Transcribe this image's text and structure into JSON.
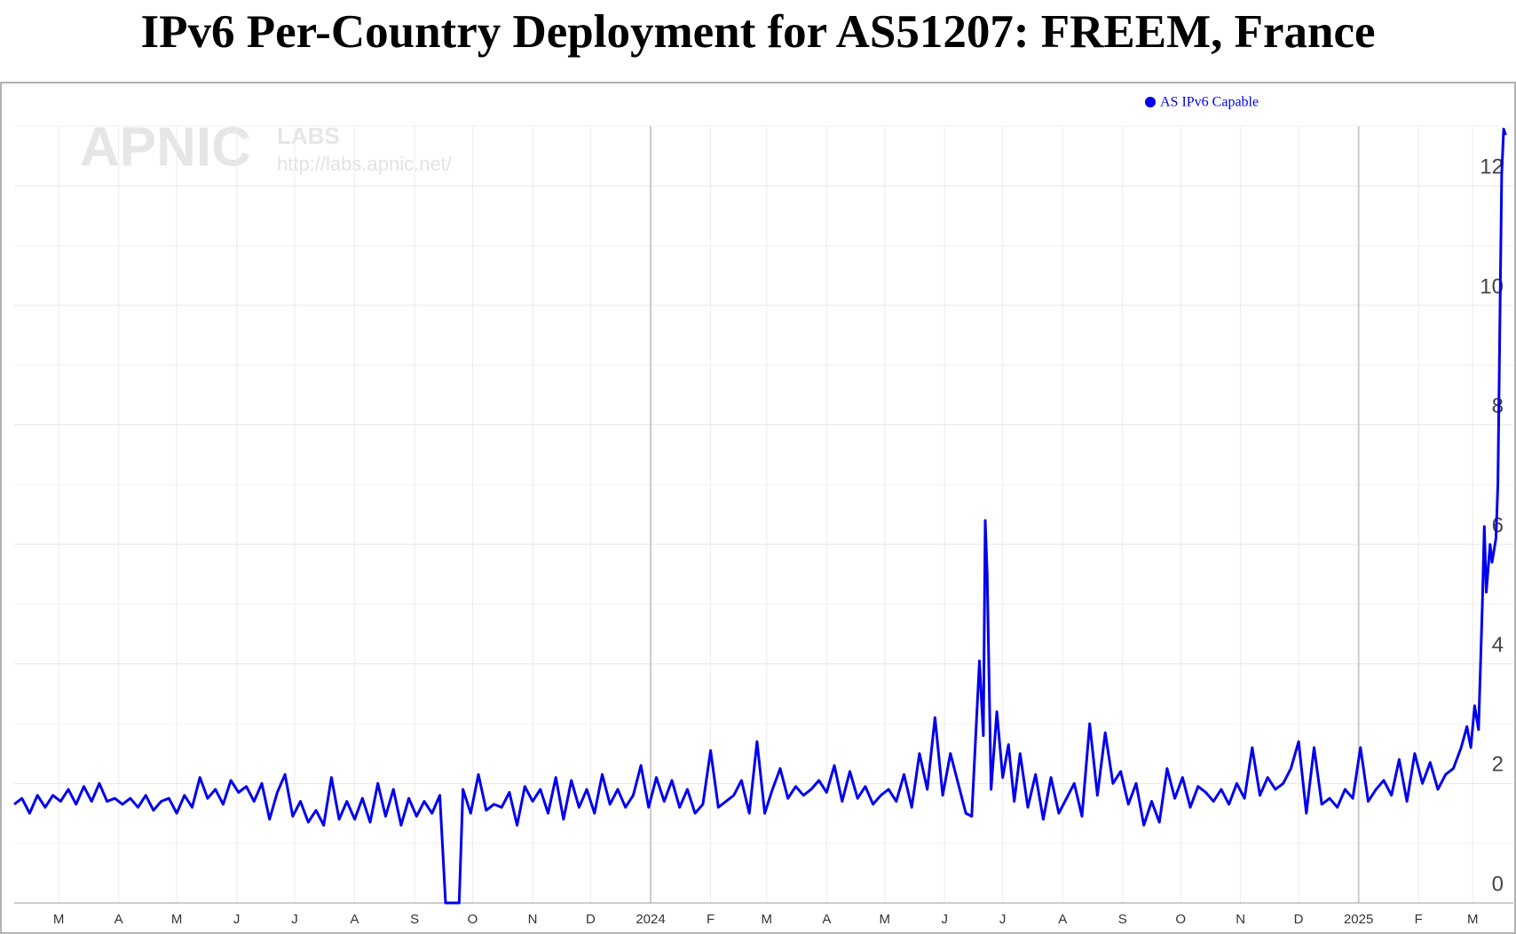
{
  "chart_data": {
    "type": "line",
    "title": "IPv6 Per-Country Deployment for AS51207: FREEM, France",
    "watermark": {
      "logo": "APNIC",
      "sub": "LABS",
      "url": "http://labs.apnic.net/"
    },
    "x": [
      -23,
      -19,
      -15,
      -11,
      -7,
      -3,
      1,
      5,
      9,
      13,
      17,
      21,
      25,
      29,
      33,
      37,
      41,
      45,
      49,
      53,
      57,
      61,
      65,
      69,
      73,
      77,
      81,
      85,
      89,
      93,
      97,
      101,
      105,
      109,
      113,
      117,
      121,
      125,
      129,
      133,
      137,
      141,
      145,
      149,
      153,
      157,
      161,
      165,
      169,
      173,
      177,
      181,
      185,
      189,
      193,
      197,
      200,
      207,
      209,
      213,
      217,
      221,
      225,
      229,
      233,
      237,
      241,
      245,
      249,
      253,
      257,
      261,
      265,
      269,
      273,
      277,
      281,
      285,
      289,
      293,
      297,
      301,
      305,
      309,
      313,
      317,
      321,
      325,
      329,
      333,
      337,
      341,
      345,
      349,
      353,
      357,
      361,
      365,
      369,
      373,
      377,
      381,
      385,
      389,
      393,
      397,
      401,
      405,
      409,
      413,
      417,
      421,
      425,
      429,
      433,
      437,
      441,
      445,
      449,
      453,
      457,
      461,
      465,
      469,
      472,
      476,
      478,
      479,
      480,
      482,
      485,
      488,
      491,
      494,
      497,
      501,
      505,
      509,
      513,
      517,
      521,
      525,
      529,
      533,
      537,
      541,
      545,
      549,
      553,
      557,
      561,
      565,
      569,
      573,
      577,
      581,
      585,
      589,
      593,
      597,
      601,
      605,
      609,
      613,
      617,
      621,
      625,
      629,
      633,
      637,
      641,
      645,
      649,
      653,
      657,
      661,
      665,
      669,
      673,
      677,
      681,
      685,
      689,
      693,
      697,
      701,
      705,
      709,
      713,
      717,
      721,
      725,
      728,
      730,
      732,
      734,
      736,
      737,
      738,
      740,
      741,
      743,
      744,
      746,
      747,
      748
    ],
    "series": [
      {
        "name": "AS IPv6 Capable",
        "color": "#0000ee",
        "values": [
          1.65,
          1.75,
          1.5,
          1.8,
          1.6,
          1.8,
          1.7,
          1.9,
          1.65,
          1.95,
          1.7,
          2.0,
          1.7,
          1.75,
          1.65,
          1.75,
          1.6,
          1.8,
          1.55,
          1.7,
          1.75,
          1.5,
          1.8,
          1.6,
          2.1,
          1.75,
          1.9,
          1.65,
          2.05,
          1.85,
          1.95,
          1.7,
          2.0,
          1.4,
          1.85,
          2.15,
          1.45,
          1.7,
          1.35,
          1.55,
          1.3,
          2.1,
          1.4,
          1.7,
          1.4,
          1.75,
          1.35,
          2.0,
          1.45,
          1.9,
          1.3,
          1.75,
          1.45,
          1.7,
          1.5,
          1.8,
          0,
          0,
          1.9,
          1.5,
          2.15,
          1.55,
          1.65,
          1.6,
          1.85,
          1.3,
          1.95,
          1.7,
          1.9,
          1.5,
          2.1,
          1.4,
          2.05,
          1.6,
          1.9,
          1.5,
          2.15,
          1.65,
          1.9,
          1.6,
          1.8,
          2.3,
          1.6,
          2.1,
          1.7,
          2.05,
          1.6,
          1.9,
          1.5,
          1.65,
          2.55,
          1.6,
          1.7,
          1.8,
          2.05,
          1.5,
          2.7,
          1.5,
          1.9,
          2.25,
          1.75,
          1.95,
          1.8,
          1.9,
          2.05,
          1.85,
          2.3,
          1.7,
          2.2,
          1.75,
          1.95,
          1.65,
          1.8,
          1.9,
          1.7,
          2.15,
          1.6,
          2.5,
          1.9,
          3.1,
          1.8,
          2.5,
          2.0,
          1.5,
          1.45,
          4.05,
          2.8,
          6.4,
          5.5,
          1.9,
          3.2,
          2.1,
          2.65,
          1.7,
          2.5,
          1.6,
          2.15,
          1.4,
          2.1,
          1.5,
          1.75,
          2.0,
          1.45,
          3.0,
          1.8,
          2.85,
          2.0,
          2.2,
          1.65,
          2.0,
          1.3,
          1.7,
          1.35,
          2.25,
          1.75,
          2.1,
          1.6,
          1.95,
          1.85,
          1.7,
          1.9,
          1.65,
          2.0,
          1.75,
          2.6,
          1.8,
          2.1,
          1.9,
          2.0,
          2.25,
          2.7,
          1.5,
          2.6,
          1.65,
          1.75,
          1.6,
          1.9,
          1.75,
          2.6,
          1.7,
          1.9,
          2.05,
          1.8,
          2.4,
          1.7,
          2.5,
          2.0,
          2.35,
          1.9,
          2.15,
          2.25,
          2.6,
          2.95,
          2.6,
          3.3,
          2.9,
          5.0,
          6.3,
          5.2,
          6.0,
          5.7,
          6.1,
          7.0,
          12.2,
          12.95,
          12.85
        ]
      }
    ],
    "xlim": [
      -23,
      752
    ],
    "xticks": [
      {
        "value": 0,
        "label": "M"
      },
      {
        "value": 31,
        "label": "A"
      },
      {
        "value": 61,
        "label": "M"
      },
      {
        "value": 92,
        "label": "J"
      },
      {
        "value": 122,
        "label": "J"
      },
      {
        "value": 153,
        "label": "A"
      },
      {
        "value": 184,
        "label": "S"
      },
      {
        "value": 214,
        "label": "O"
      },
      {
        "value": 245,
        "label": "N"
      },
      {
        "value": 275,
        "label": "D"
      },
      {
        "value": 306,
        "label": "2024"
      },
      {
        "value": 337,
        "label": "F"
      },
      {
        "value": 366,
        "label": "M"
      },
      {
        "value": 397,
        "label": "A"
      },
      {
        "value": 427,
        "label": "M"
      },
      {
        "value": 458,
        "label": "J"
      },
      {
        "value": 488,
        "label": "J"
      },
      {
        "value": 519,
        "label": "A"
      },
      {
        "value": 550,
        "label": "S"
      },
      {
        "value": 580,
        "label": "O"
      },
      {
        "value": 611,
        "label": "N"
      },
      {
        "value": 641,
        "label": "D"
      },
      {
        "value": 672,
        "label": "2025"
      },
      {
        "value": 703,
        "label": "F"
      },
      {
        "value": 731,
        "label": "M"
      }
    ],
    "ylim": [
      0,
      13
    ],
    "yticks": [
      0,
      2,
      4,
      6,
      8,
      10,
      12
    ],
    "yminor": [
      1,
      3,
      5,
      7,
      9,
      11,
      13
    ],
    "grid": true,
    "legend": "top"
  }
}
